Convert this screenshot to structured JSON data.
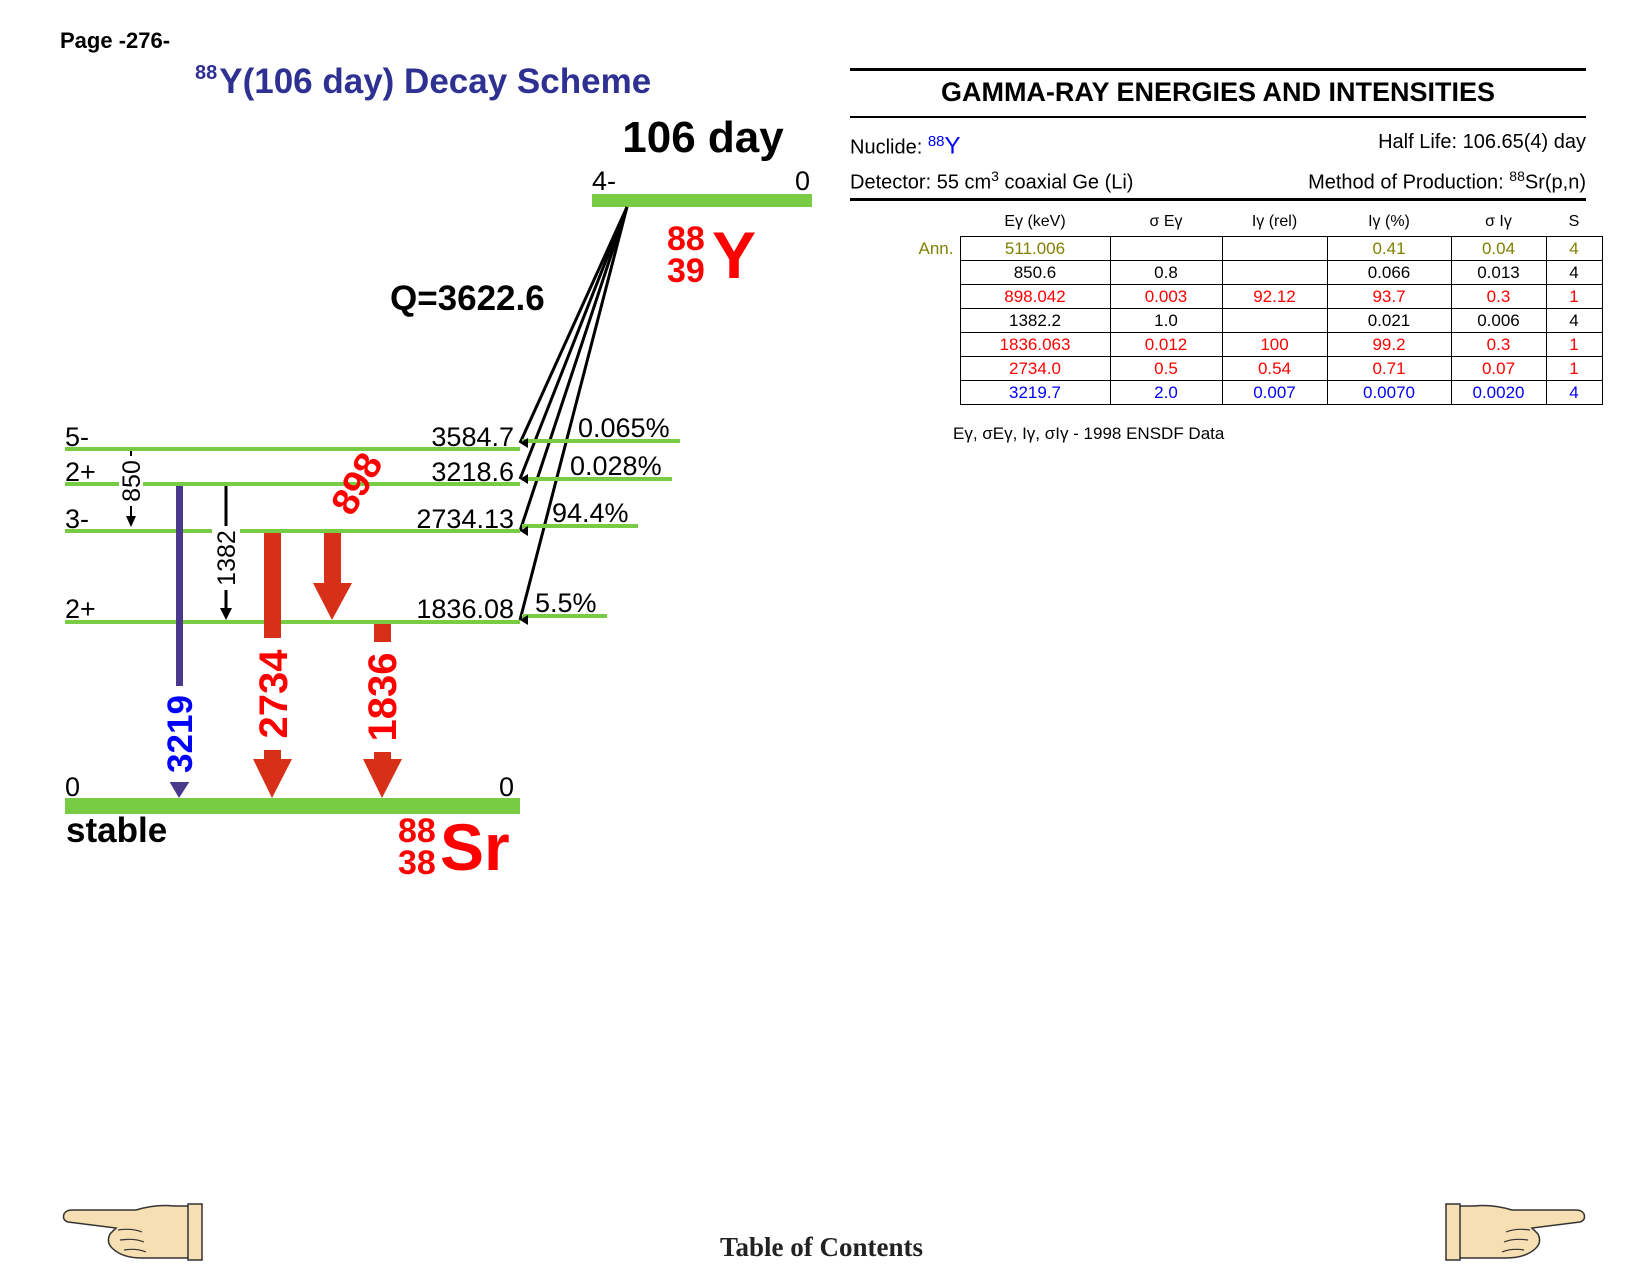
{
  "page": {
    "label": "Page -276-"
  },
  "title": {
    "mass": "88",
    "text": "Y(106 day) Decay Scheme"
  },
  "parent": {
    "half_life": "106 day",
    "spin": "4-",
    "energy": "0",
    "mass": "88",
    "z": "39",
    "symbol": "Y",
    "q_value": "Q=3622.6"
  },
  "daughter": {
    "mass": "88",
    "z": "38",
    "symbol": "Sr",
    "stability": "stable"
  },
  "levels": [
    {
      "spin": "5-",
      "energy": "3584.7",
      "branch": "0.065%"
    },
    {
      "spin": "2+",
      "energy": "3218.6",
      "branch": "0.028%"
    },
    {
      "spin": "3-",
      "energy": "2734.13",
      "branch": "94.4%"
    },
    {
      "spin": "2+",
      "energy": "1836.08",
      "branch": "5.5%"
    },
    {
      "spin": "0",
      "energy": "0",
      "branch": ""
    }
  ],
  "transitions": [
    {
      "label": "850",
      "from": "3584.7",
      "to": "2734.13",
      "color": "#000000"
    },
    {
      "label": "3219",
      "from": "3218.6",
      "to": "0",
      "color": "#0000ff"
    },
    {
      "label": "1382",
      "from": "3218.6",
      "to": "1836.08",
      "color": "#000000"
    },
    {
      "label": "2734",
      "from": "2734.13",
      "to": "0",
      "color": "#ff0000"
    },
    {
      "label": "898",
      "from": "2734.13",
      "to": "1836.08",
      "color": "#ff0000"
    },
    {
      "label": "1836",
      "from": "1836.08",
      "to": "0",
      "color": "#ff0000"
    }
  ],
  "colors": {
    "level_line": "#77cc44",
    "title_blue": "#2e3192",
    "strong_gamma": "#d83018",
    "weak_gamma": "#4b3a8c",
    "nuclide_red": "#ff0000"
  },
  "gamma_panel": {
    "heading": "GAMMA-RAY ENERGIES AND INTENSITIES",
    "nuclide_label": "Nuclide:",
    "nuclide_mass": "88",
    "nuclide_symbol": "Y",
    "half_life": "Half Life: 106.65(4) day",
    "detector_pre": "Detector: 55 cm",
    "detector_sup": "3",
    "detector_post": " coaxial Ge (Li)",
    "production_pre": "Method of Production: ",
    "production_sup": "88",
    "production_post": "Sr(p,n)"
  },
  "table": {
    "headers": [
      "Eγ (keV)",
      "σ Eγ",
      "Iγ (rel)",
      "Iγ (%)",
      "σ Iγ",
      "S"
    ],
    "rows": [
      {
        "label": "Ann.",
        "style": "olive",
        "cells": [
          "511.006",
          "",
          "",
          "0.41",
          "0.04",
          "4"
        ]
      },
      {
        "label": "",
        "style": "black",
        "cells": [
          "850.6",
          "0.8",
          "",
          "0.066",
          "0.013",
          "4"
        ]
      },
      {
        "label": "",
        "style": "red",
        "cells": [
          "898.042",
          "0.003",
          "92.12",
          "93.7",
          "0.3",
          "1"
        ]
      },
      {
        "label": "",
        "style": "black",
        "cells": [
          "1382.2",
          "1.0",
          "",
          "0.021",
          "0.006",
          "4"
        ]
      },
      {
        "label": "",
        "style": "red",
        "cells": [
          "1836.063",
          "0.012",
          "100",
          "99.2",
          "0.3",
          "1"
        ]
      },
      {
        "label": "",
        "style": "red",
        "cells": [
          "2734.0",
          "0.5",
          "0.54",
          "0.71",
          "0.07",
          "1"
        ]
      },
      {
        "label": "",
        "style": "blue",
        "cells": [
          "3219.7",
          "2.0",
          "0.007",
          "0.0070",
          "0.0020",
          "4"
        ]
      }
    ],
    "note": "Eγ, σEγ, Iγ, σIγ -  1998 ENSDF Data"
  },
  "footer": {
    "toc": "Table of Contents",
    "prev_icon": "pointing-hand-left-icon",
    "next_icon": "pointing-hand-right-icon"
  }
}
